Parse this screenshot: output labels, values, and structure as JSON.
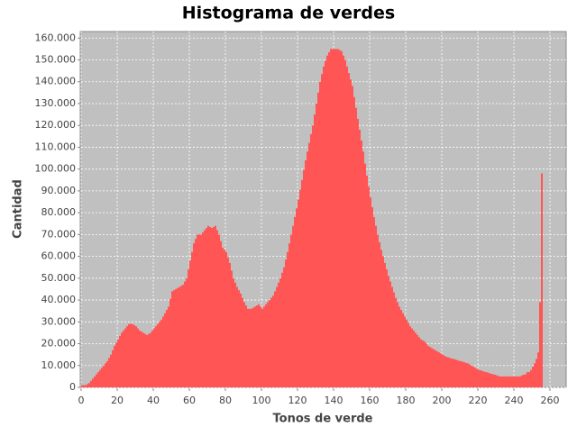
{
  "chart_data": {
    "type": "histogram",
    "title": "Histograma de verdes",
    "x_label": "Tonos de verde",
    "y_label": "Cantidad",
    "color": "#ff5555",
    "grid": true,
    "xlim": [
      0,
      269
    ],
    "ylim": [
      0,
      163000
    ],
    "xticks": [
      0,
      20,
      40,
      60,
      80,
      100,
      120,
      140,
      160,
      180,
      200,
      220,
      240,
      260
    ],
    "yticks": [
      0,
      {
        "value": 10000,
        "label": "10.000"
      },
      {
        "value": 20000,
        "label": "20.000"
      },
      {
        "value": 30000,
        "label": "30.000"
      },
      {
        "value": 40000,
        "label": "40.000"
      },
      {
        "value": 50000,
        "label": "50.000"
      },
      {
        "value": 60000,
        "label": "60.000"
      },
      {
        "value": 70000,
        "label": "70.000"
      },
      {
        "value": 80000,
        "label": "80.000"
      },
      {
        "value": 90000,
        "label": "90.000"
      },
      {
        "value": 100000,
        "label": "100.000"
      },
      {
        "value": 110000,
        "label": "110.000"
      },
      {
        "value": 120000,
        "label": "120.000"
      },
      {
        "value": 130000,
        "label": "130.000"
      },
      {
        "value": 140000,
        "label": "140.000"
      },
      {
        "value": 150000,
        "label": "150.000"
      },
      {
        "value": 160000,
        "label": "160.000"
      }
    ],
    "bins": [
      0,
      1,
      2,
      3,
      4,
      5,
      6,
      7,
      8,
      9,
      10,
      11,
      12,
      13,
      14,
      15,
      16,
      17,
      18,
      19,
      20,
      21,
      22,
      23,
      24,
      25,
      26,
      27,
      28,
      29,
      30,
      31,
      32,
      33,
      34,
      35,
      36,
      37,
      38,
      39,
      40,
      41,
      42,
      43,
      44,
      45,
      46,
      47,
      48,
      49,
      50,
      51,
      52,
      53,
      54,
      55,
      56,
      57,
      58,
      59,
      60,
      61,
      62,
      63,
      64,
      65,
      66,
      67,
      68,
      69,
      70,
      71,
      72,
      73,
      74,
      75,
      76,
      77,
      78,
      79,
      80,
      81,
      82,
      83,
      84,
      85,
      86,
      87,
      88,
      89,
      90,
      91,
      92,
      93,
      94,
      95,
      96,
      97,
      98,
      99,
      100,
      101,
      102,
      103,
      104,
      105,
      106,
      107,
      108,
      109,
      110,
      111,
      112,
      113,
      114,
      115,
      116,
      117,
      118,
      119,
      120,
      121,
      122,
      123,
      124,
      125,
      126,
      127,
      128,
      129,
      130,
      131,
      132,
      133,
      134,
      135,
      136,
      137,
      138,
      139,
      140,
      141,
      142,
      143,
      144,
      145,
      146,
      147,
      148,
      149,
      150,
      151,
      152,
      153,
      154,
      155,
      156,
      157,
      158,
      159,
      160,
      161,
      162,
      163,
      164,
      165,
      166,
      167,
      168,
      169,
      170,
      171,
      172,
      173,
      174,
      175,
      176,
      177,
      178,
      179,
      180,
      181,
      182,
      183,
      184,
      185,
      186,
      187,
      188,
      189,
      190,
      191,
      192,
      193,
      194,
      195,
      196,
      197,
      198,
      199,
      200,
      201,
      202,
      203,
      204,
      205,
      206,
      207,
      208,
      209,
      210,
      211,
      212,
      213,
      214,
      215,
      216,
      217,
      218,
      219,
      220,
      221,
      222,
      223,
      224,
      225,
      226,
      227,
      228,
      229,
      230,
      231,
      232,
      233,
      234,
      235,
      236,
      237,
      238,
      239,
      240,
      241,
      242,
      243,
      244,
      245,
      246,
      247,
      248,
      249,
      250,
      251,
      252,
      253,
      254,
      255,
      256
    ],
    "values": [
      1000,
      1000,
      1000,
      1500,
      2000,
      3000,
      4000,
      5000,
      6000,
      7000,
      8000,
      9000,
      10000,
      11000,
      12000,
      13500,
      15000,
      17000,
      19000,
      20500,
      22000,
      23500,
      25000,
      26000,
      27000,
      28000,
      29000,
      29000,
      29000,
      28500,
      28000,
      27000,
      26000,
      25500,
      25000,
      24500,
      24000,
      24500,
      25000,
      26000,
      27000,
      28000,
      29000,
      30000,
      31000,
      32500,
      34000,
      35500,
      37000,
      40500,
      44000,
      44500,
      45000,
      45500,
      46000,
      46500,
      47000,
      48500,
      50000,
      54000,
      58000,
      62000,
      66000,
      68000,
      70000,
      70000,
      70000,
      71000,
      72000,
      73000,
      74000,
      73500,
      73000,
      73500,
      74000,
      72000,
      70000,
      67000,
      64000,
      63000,
      62000,
      59500,
      57000,
      53500,
      50000,
      48000,
      46000,
      44500,
      43000,
      41000,
      39000,
      37500,
      36000,
      36000,
      36000,
      36500,
      37000,
      37500,
      38000,
      37000,
      36000,
      37000,
      38000,
      39000,
      40000,
      41000,
      42000,
      44000,
      46000,
      48000,
      50000,
      52500,
      55000,
      58500,
      62000,
      66000,
      70000,
      74000,
      78000,
      82000,
      86000,
      90500,
      95000,
      99500,
      104000,
      108000,
      112000,
      116000,
      120000,
      125000,
      130000,
      135000,
      140000,
      143500,
      147000,
      149500,
      152000,
      153500,
      155000,
      155000,
      155000,
      155000,
      155000,
      154500,
      154000,
      152000,
      150000,
      147000,
      144000,
      141000,
      138000,
      133000,
      128000,
      123000,
      118000,
      113000,
      108000,
      102500,
      97000,
      92000,
      87000,
      82500,
      78000,
      74000,
      70000,
      66500,
      63000,
      60000,
      57000,
      54000,
      51000,
      48500,
      46000,
      43500,
      41000,
      39000,
      37000,
      35500,
      34000,
      32500,
      31000,
      29500,
      28000,
      27000,
      26000,
      25000,
      24000,
      23000,
      22000,
      21500,
      21000,
      20000,
      19000,
      18500,
      18000,
      17500,
      17000,
      16500,
      16000,
      15500,
      15000,
      14500,
      14000,
      13800,
      13500,
      13200,
      13000,
      12800,
      12500,
      12200,
      12000,
      11800,
      11500,
      11200,
      11000,
      10500,
      10000,
      9500,
      9000,
      8500,
      8000,
      7800,
      7500,
      7200,
      7000,
      6800,
      6500,
      6200,
      6000,
      5800,
      5500,
      5200,
      5000,
      5000,
      5000,
      5000,
      5000,
      5000,
      5000,
      5000,
      5000,
      5000,
      5000,
      5000,
      5500,
      5800,
      6000,
      7000,
      7000,
      8000,
      9500,
      11000,
      13000,
      16000,
      39000,
      98000
    ]
  }
}
